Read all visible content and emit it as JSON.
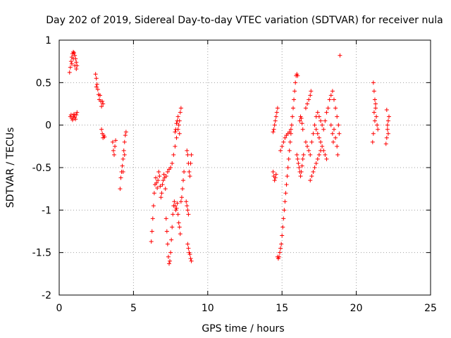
{
  "chart_data": {
    "type": "scatter",
    "title": "Day 202 of 2019, Sidereal Day-to-day VTEC variation (SDTVAR) for receiver nula",
    "xlabel": "GPS time / hours",
    "ylabel": "SDTVAR / TECUs",
    "xlim": [
      0,
      25
    ],
    "ylim": [
      -2,
      1
    ],
    "xticks": [
      0,
      5,
      10,
      15,
      20,
      25
    ],
    "yticks": [
      -2,
      -1.5,
      -1,
      -0.5,
      0,
      0.5,
      1
    ],
    "xtick_labels": [
      "0",
      "5",
      "10",
      "15",
      "20",
      "25"
    ],
    "ytick_labels": [
      "-2",
      "-1.5",
      "-1",
      "-0.5",
      "0",
      "0.5",
      "1"
    ],
    "grid": true,
    "marker": "+",
    "color": "#ff0000",
    "series": [
      {
        "points": [
          [
            0.7,
            0.62
          ],
          [
            0.75,
            0.68
          ],
          [
            0.8,
            0.75
          ],
          [
            0.85,
            0.8
          ],
          [
            0.9,
            0.84
          ],
          [
            0.95,
            0.86
          ],
          [
            1.0,
            0.85
          ],
          [
            1.05,
            0.82
          ],
          [
            1.1,
            0.78
          ],
          [
            1.15,
            0.74
          ],
          [
            1.2,
            0.7
          ],
          [
            0.85,
            0.72
          ],
          [
            0.95,
            0.78
          ],
          [
            1.05,
            0.7
          ],
          [
            1.15,
            0.66
          ],
          [
            0.75,
            0.1
          ],
          [
            0.8,
            0.12
          ],
          [
            0.85,
            0.08
          ],
          [
            0.9,
            0.06
          ],
          [
            0.95,
            0.1
          ],
          [
            1.0,
            0.13
          ],
          [
            1.05,
            0.09
          ],
          [
            1.1,
            0.07
          ],
          [
            1.15,
            0.12
          ],
          [
            1.2,
            0.15
          ],
          [
            2.45,
            0.6
          ],
          [
            2.5,
            0.55
          ],
          [
            2.55,
            0.48
          ],
          [
            2.6,
            0.42
          ],
          [
            2.65,
            0.36
          ],
          [
            2.7,
            0.3
          ],
          [
            2.75,
            0.35
          ],
          [
            2.5,
            0.45
          ],
          [
            2.8,
            0.28
          ],
          [
            2.85,
            0.22
          ],
          [
            2.9,
            0.28
          ],
          [
            2.95,
            0.25
          ],
          [
            2.85,
            -0.05
          ],
          [
            2.9,
            -0.1
          ],
          [
            2.95,
            -0.15
          ],
          [
            3.0,
            -0.12
          ],
          [
            3.05,
            -0.14
          ],
          [
            3.6,
            -0.2
          ],
          [
            3.65,
            -0.3
          ],
          [
            3.7,
            -0.35
          ],
          [
            3.75,
            -0.25
          ],
          [
            3.8,
            -0.18
          ],
          [
            4.1,
            -0.75
          ],
          [
            4.15,
            -0.62
          ],
          [
            4.2,
            -0.55
          ],
          [
            4.25,
            -0.48
          ],
          [
            4.3,
            -0.4
          ],
          [
            4.35,
            -0.3
          ],
          [
            4.4,
            -0.2
          ],
          [
            4.45,
            -0.12
          ],
          [
            4.5,
            -0.08
          ],
          [
            4.3,
            -0.55
          ],
          [
            4.4,
            -0.35
          ],
          [
            6.2,
            -1.37
          ],
          [
            6.25,
            -1.25
          ],
          [
            6.3,
            -1.1
          ],
          [
            6.35,
            -0.95
          ],
          [
            6.4,
            -0.8
          ],
          [
            6.45,
            -0.7
          ],
          [
            6.5,
            -0.62
          ],
          [
            6.55,
            -0.68
          ],
          [
            6.6,
            -0.74
          ],
          [
            6.65,
            -0.65
          ],
          [
            6.7,
            -0.55
          ],
          [
            6.75,
            -0.6
          ],
          [
            6.8,
            -0.72
          ],
          [
            6.85,
            -0.85
          ],
          [
            6.9,
            -0.8
          ],
          [
            6.95,
            -0.7
          ],
          [
            7.0,
            -0.65
          ],
          [
            7.05,
            -0.58
          ],
          [
            7.1,
            -0.62
          ],
          [
            7.15,
            -0.75
          ],
          [
            7.2,
            -1.1
          ],
          [
            7.25,
            -1.25
          ],
          [
            7.3,
            -1.4
          ],
          [
            7.35,
            -1.55
          ],
          [
            7.4,
            -1.63
          ],
          [
            7.45,
            -1.6
          ],
          [
            7.5,
            -1.5
          ],
          [
            7.55,
            -1.35
          ],
          [
            7.6,
            -1.2
          ],
          [
            7.65,
            -1.05
          ],
          [
            7.2,
            -0.6
          ],
          [
            7.3,
            -0.55
          ],
          [
            7.4,
            -0.52
          ],
          [
            7.5,
            -0.5
          ],
          [
            7.6,
            -0.45
          ],
          [
            7.7,
            -0.35
          ],
          [
            7.8,
            -0.25
          ],
          [
            7.9,
            -0.15
          ],
          [
            8.0,
            -0.05
          ],
          [
            8.1,
            0.05
          ],
          [
            8.15,
            0.15
          ],
          [
            8.2,
            0.2
          ],
          [
            7.7,
            -0.95
          ],
          [
            7.75,
            -0.9
          ],
          [
            7.8,
            -0.95
          ],
          [
            7.85,
            -1.0
          ],
          [
            7.9,
            -0.98
          ],
          [
            7.95,
            -0.92
          ],
          [
            8.0,
            -1.05
          ],
          [
            8.05,
            -1.15
          ],
          [
            8.1,
            -1.2
          ],
          [
            8.15,
            -1.28
          ],
          [
            7.8,
            -0.08
          ],
          [
            7.85,
            -0.05
          ],
          [
            7.9,
            0.02
          ],
          [
            7.95,
            0.05
          ],
          [
            8.0,
            0.1
          ],
          [
            8.05,
            0.0
          ],
          [
            8.1,
            -0.1
          ],
          [
            8.2,
            -0.9
          ],
          [
            8.25,
            -0.85
          ],
          [
            8.3,
            -0.75
          ],
          [
            8.35,
            -0.65
          ],
          [
            8.4,
            -0.55
          ],
          [
            8.6,
            -0.3
          ],
          [
            8.65,
            -0.35
          ],
          [
            8.7,
            -0.45
          ],
          [
            8.75,
            -0.55
          ],
          [
            8.8,
            -0.6
          ],
          [
            8.85,
            -0.45
          ],
          [
            8.9,
            -0.35
          ],
          [
            8.55,
            -0.9
          ],
          [
            8.6,
            -0.95
          ],
          [
            8.65,
            -1.0
          ],
          [
            8.7,
            -1.05
          ],
          [
            8.65,
            -1.4
          ],
          [
            8.7,
            -1.45
          ],
          [
            8.75,
            -1.5
          ],
          [
            8.8,
            -1.52
          ],
          [
            8.85,
            -1.57
          ],
          [
            8.9,
            -1.6
          ],
          [
            14.4,
            -0.08
          ],
          [
            14.45,
            -0.05
          ],
          [
            14.5,
            0.0
          ],
          [
            14.55,
            0.05
          ],
          [
            14.6,
            0.1
          ],
          [
            14.65,
            0.15
          ],
          [
            14.7,
            0.2
          ],
          [
            14.4,
            -0.55
          ],
          [
            14.45,
            -0.6
          ],
          [
            14.5,
            -0.65
          ],
          [
            14.55,
            -0.62
          ],
          [
            14.6,
            -0.58
          ],
          [
            14.7,
            -1.55
          ],
          [
            14.75,
            -1.57
          ],
          [
            14.8,
            -1.55
          ],
          [
            14.85,
            -1.5
          ],
          [
            14.9,
            -1.45
          ],
          [
            14.95,
            -1.4
          ],
          [
            15.0,
            -1.3
          ],
          [
            15.05,
            -1.2
          ],
          [
            15.1,
            -1.1
          ],
          [
            15.15,
            -1.0
          ],
          [
            15.2,
            -0.9
          ],
          [
            15.25,
            -0.8
          ],
          [
            15.3,
            -0.7
          ],
          [
            15.35,
            -0.6
          ],
          [
            15.4,
            -0.5
          ],
          [
            15.45,
            -0.4
          ],
          [
            15.5,
            -0.3
          ],
          [
            15.55,
            -0.2
          ],
          [
            15.6,
            -0.1
          ],
          [
            15.65,
            0.0
          ],
          [
            15.7,
            0.1
          ],
          [
            15.75,
            0.2
          ],
          [
            15.8,
            0.3
          ],
          [
            15.85,
            0.4
          ],
          [
            15.9,
            0.5
          ],
          [
            15.95,
            0.58
          ],
          [
            16.0,
            0.6
          ],
          [
            16.05,
            0.58
          ],
          [
            14.9,
            -0.3
          ],
          [
            15.0,
            -0.25
          ],
          [
            15.1,
            -0.2
          ],
          [
            15.2,
            -0.15
          ],
          [
            15.3,
            -0.12
          ],
          [
            15.4,
            -0.1
          ],
          [
            15.5,
            -0.08
          ],
          [
            15.6,
            -0.05
          ],
          [
            16.0,
            -0.35
          ],
          [
            16.05,
            -0.4
          ],
          [
            16.1,
            -0.45
          ],
          [
            16.15,
            -0.5
          ],
          [
            16.2,
            -0.55
          ],
          [
            16.25,
            -0.6
          ],
          [
            16.3,
            -0.55
          ],
          [
            16.35,
            -0.48
          ],
          [
            16.4,
            -0.4
          ],
          [
            16.45,
            -0.35
          ],
          [
            16.2,
            0.05
          ],
          [
            16.25,
            0.1
          ],
          [
            16.3,
            0.08
          ],
          [
            16.35,
            0.02
          ],
          [
            16.4,
            -0.05
          ],
          [
            16.6,
            -0.2
          ],
          [
            16.7,
            -0.25
          ],
          [
            16.8,
            -0.3
          ],
          [
            16.9,
            -0.35
          ],
          [
            17.0,
            -0.2
          ],
          [
            17.1,
            -0.1
          ],
          [
            17.2,
            0.0
          ],
          [
            17.3,
            0.1
          ],
          [
            17.4,
            0.15
          ],
          [
            16.6,
            0.2
          ],
          [
            16.7,
            0.25
          ],
          [
            16.8,
            0.3
          ],
          [
            16.9,
            0.35
          ],
          [
            16.95,
            0.4
          ],
          [
            16.9,
            -0.65
          ],
          [
            17.0,
            -0.6
          ],
          [
            17.1,
            -0.55
          ],
          [
            17.2,
            -0.5
          ],
          [
            17.3,
            -0.45
          ],
          [
            17.4,
            -0.4
          ],
          [
            17.5,
            -0.35
          ],
          [
            17.6,
            -0.3
          ],
          [
            17.3,
            -0.05
          ],
          [
            17.4,
            -0.1
          ],
          [
            17.5,
            -0.15
          ],
          [
            17.6,
            -0.2
          ],
          [
            17.7,
            -0.25
          ],
          [
            17.8,
            -0.3
          ],
          [
            17.9,
            -0.35
          ],
          [
            18.0,
            -0.4
          ],
          [
            17.5,
            0.1
          ],
          [
            17.6,
            0.05
          ],
          [
            17.7,
            0.0
          ],
          [
            17.8,
            -0.05
          ],
          [
            17.9,
            0.05
          ],
          [
            18.0,
            0.15
          ],
          [
            18.1,
            0.2
          ],
          [
            18.2,
            0.3
          ],
          [
            18.3,
            0.35
          ],
          [
            18.4,
            0.4
          ],
          [
            18.5,
            0.3
          ],
          [
            18.6,
            0.2
          ],
          [
            18.7,
            0.1
          ],
          [
            18.8,
            0.0
          ],
          [
            18.85,
            -0.1
          ],
          [
            18.5,
            -0.05
          ],
          [
            18.6,
            -0.15
          ],
          [
            18.7,
            -0.25
          ],
          [
            18.75,
            -0.35
          ],
          [
            18.3,
            0.0
          ],
          [
            18.4,
            -0.1
          ],
          [
            18.45,
            -0.2
          ],
          [
            18.9,
            0.82
          ],
          [
            21.15,
            0.5
          ],
          [
            21.2,
            0.4
          ],
          [
            21.25,
            0.3
          ],
          [
            21.3,
            0.2
          ],
          [
            21.35,
            0.1
          ],
          [
            21.4,
            0.0
          ],
          [
            21.45,
            -0.05
          ],
          [
            21.2,
            0.15
          ],
          [
            21.3,
            0.25
          ],
          [
            21.1,
            -0.2
          ],
          [
            21.15,
            -0.1
          ],
          [
            21.25,
            0.05
          ],
          [
            22.0,
            -0.22
          ],
          [
            22.05,
            -0.15
          ],
          [
            22.1,
            -0.05
          ],
          [
            22.15,
            0.05
          ],
          [
            22.2,
            0.1
          ],
          [
            22.05,
            0.18
          ],
          [
            22.1,
            0.0
          ],
          [
            22.15,
            -0.1
          ]
        ]
      }
    ]
  }
}
